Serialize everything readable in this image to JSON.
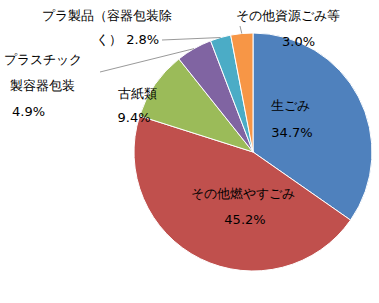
{
  "chart_data": {
    "type": "pie",
    "categories": [
      "生ごみ",
      "その他燃やすごみ",
      "古紙類",
      "プラスチック製容器包装",
      "プラ製品（容器包装除く）",
      "その他資源ごみ等"
    ],
    "values": [
      34.7,
      45.2,
      9.4,
      4.9,
      2.8,
      3.0
    ],
    "value_labels": [
      "34.7%",
      "45.2%",
      "9.4%",
      "4.9%",
      "2.8%",
      "3.0%"
    ],
    "colors": [
      "#4f81bd",
      "#c0504d",
      "#9bbb59",
      "#8064a2",
      "#4bacc6",
      "#f79646"
    ],
    "data_labels": true
  }
}
